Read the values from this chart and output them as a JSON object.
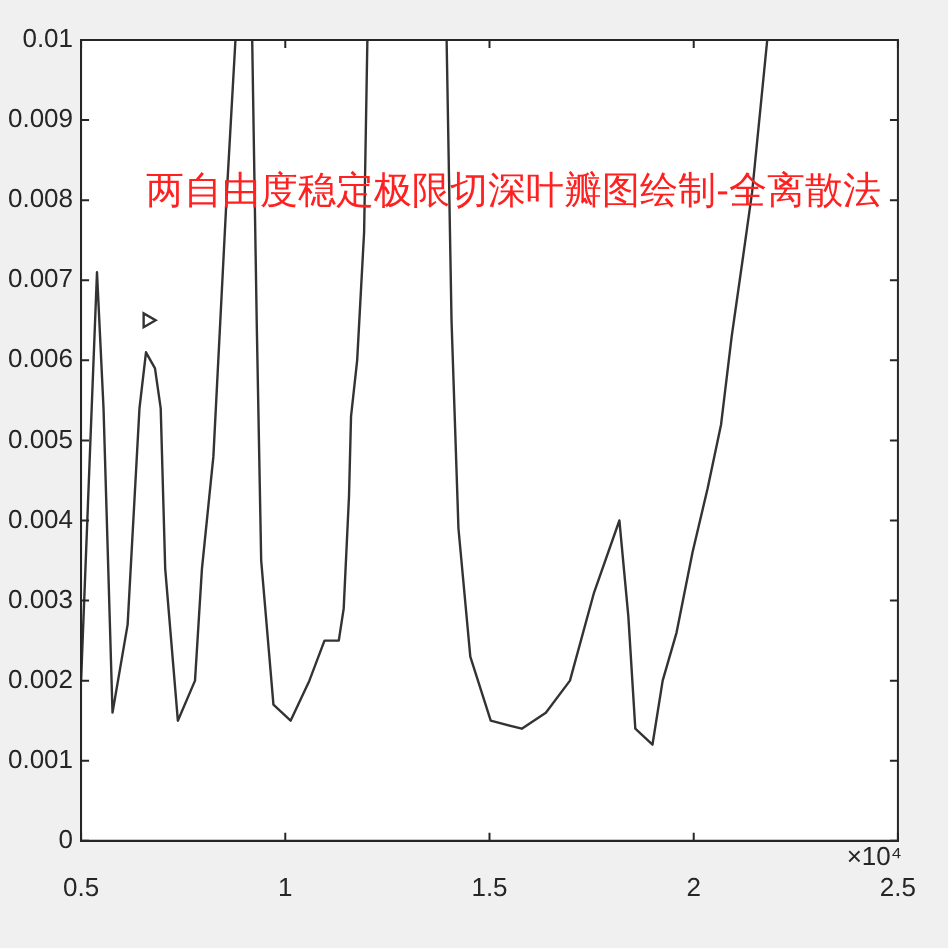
{
  "chart_data": {
    "type": "line",
    "title": "两自由度稳定极限切深叶瓣图绘制-全离散法",
    "annotations": [
      "×10⁴"
    ],
    "xlim": [
      0.5,
      2.5
    ],
    "xticks": [
      0.5,
      1,
      1.5,
      2,
      2.5
    ],
    "ylim": [
      0,
      0.01
    ],
    "yticks": [
      0,
      0.001,
      0.002,
      0.003,
      0.004,
      0.005,
      0.006,
      0.007,
      0.008,
      0.009,
      0.01
    ],
    "grid": false,
    "legend": false,
    "marker": "none",
    "line_style": "solid",
    "series": [
      {
        "color": "#333333",
        "x": [
          0.5,
          0.539,
          0.555,
          0.577,
          0.614,
          0.643,
          0.659,
          0.681,
          0.695,
          0.706,
          0.737,
          0.779,
          0.796,
          0.824,
          0.857,
          0.878
        ],
        "values": [
          0.002,
          0.0071,
          0.0054,
          0.0016,
          0.0027,
          0.0054,
          0.0061,
          0.0059,
          0.0054,
          0.0034,
          0.0015,
          0.002,
          0.0034,
          0.0048,
          0.0081,
          0.01
        ]
      },
      {
        "type": "scatter",
        "marker": "triangle",
        "color": "#333333",
        "x": [
          0.663
        ],
        "values": [
          0.0065
        ]
      },
      {
        "color": "#333333",
        "x": [
          0.919,
          0.93,
          0.941,
          0.971,
          1.013,
          1.059,
          1.096,
          1.131,
          1.143,
          1.156,
          1.161,
          1.176,
          1.193,
          1.201
        ],
        "values": [
          0.01,
          0.0065,
          0.0035,
          0.0017,
          0.0015,
          0.002,
          0.0025,
          0.0025,
          0.0029,
          0.0043,
          0.0053,
          0.006,
          0.0076,
          0.01
        ]
      },
      {
        "color": "#333333",
        "x": [
          1.395,
          1.407,
          1.424,
          1.453,
          1.503,
          1.579,
          1.638,
          1.697,
          1.756,
          1.818,
          1.84,
          1.857,
          1.899,
          1.924,
          1.958,
          1.997,
          2.034,
          2.067,
          2.093,
          2.121,
          2.143,
          2.18
        ],
        "values": [
          0.01,
          0.0065,
          0.0039,
          0.0023,
          0.0015,
          0.0014,
          0.0016,
          0.002,
          0.0031,
          0.004,
          0.0028,
          0.0014,
          0.0012,
          0.002,
          0.0026,
          0.0036,
          0.0044,
          0.0052,
          0.0063,
          0.0073,
          0.0081,
          0.01
        ]
      }
    ]
  }
}
